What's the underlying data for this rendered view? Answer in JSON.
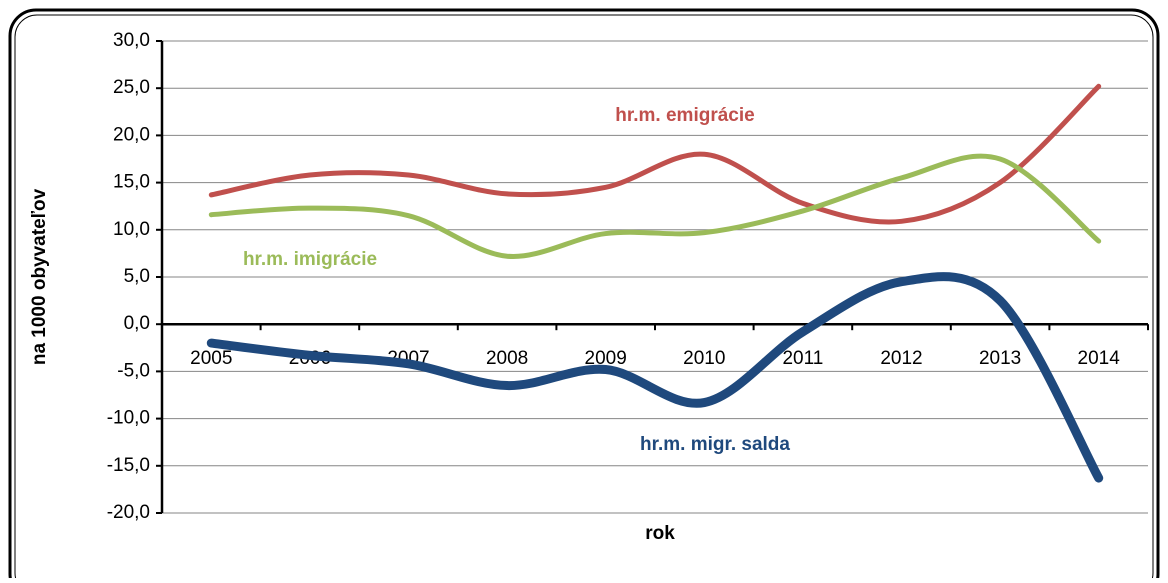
{
  "chart_data": {
    "type": "line",
    "categories": [
      "2005",
      "2006",
      "2007",
      "2008",
      "2009",
      "2010",
      "2011",
      "2012",
      "2013",
      "2014"
    ],
    "series": [
      {
        "name": "hr.m. emigrácie",
        "color": "#c0504d",
        "values": [
          13.7,
          15.8,
          15.8,
          13.8,
          14.5,
          18.0,
          12.8,
          10.9,
          15.0,
          25.2
        ]
      },
      {
        "name": "hr.m. imigrácie",
        "color": "#9bbb59",
        "values": [
          11.6,
          12.3,
          11.5,
          7.2,
          9.6,
          9.7,
          12.0,
          15.5,
          17.5,
          8.8
        ]
      },
      {
        "name": "hr.m. migr. salda",
        "color": "#1f497d",
        "values": [
          -2.0,
          -3.3,
          -4.2,
          -6.5,
          -4.8,
          -8.3,
          -0.8,
          4.5,
          2.5,
          -16.3
        ]
      }
    ],
    "xlabel": "rok",
    "ylabel": "na 1000 obyvateľov",
    "ylim": [
      -20,
      30
    ],
    "yticks": [
      {
        "value": -20,
        "label": "-20,0"
      },
      {
        "value": -15,
        "label": "-15,0"
      },
      {
        "value": -10,
        "label": "-10,0"
      },
      {
        "value": -5,
        "label": "-5,0"
      },
      {
        "value": 0,
        "label": "0,0"
      },
      {
        "value": 5,
        "label": "5,0"
      },
      {
        "value": 10,
        "label": "10,0"
      },
      {
        "value": 15,
        "label": "15,0"
      },
      {
        "value": 20,
        "label": "20,0"
      },
      {
        "value": 25,
        "label": "25,0"
      },
      {
        "value": 30,
        "label": "30,0"
      }
    ],
    "grid": true
  }
}
